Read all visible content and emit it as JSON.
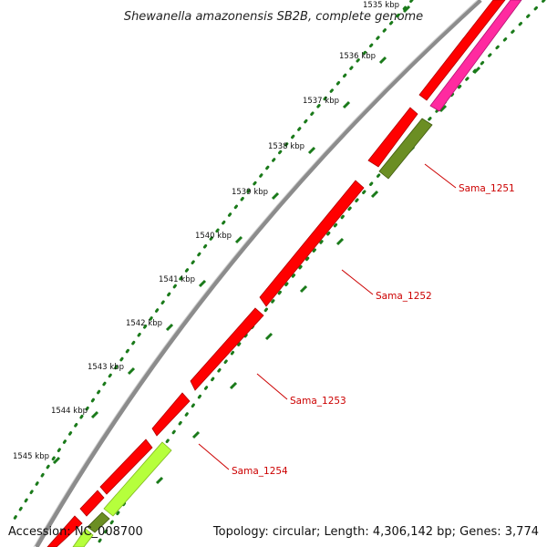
{
  "title": "Shewanella amazonensis SB2B, complete genome",
  "footer": {
    "accession": "Accession: NC_008700",
    "summary": "Topology: circular; Length: 4,306,142 bp; Genes: 3,774"
  },
  "ruler_ticks": [
    "1535 kbp",
    "1536 kbp",
    "1537 kbp",
    "1538 kbp",
    "1539 kbp",
    "1540 kbp",
    "1541 kbp",
    "1542 kbp",
    "1543 kbp",
    "1544 kbp",
    "1545 kbp"
  ],
  "gene_labels": [
    "Sama_1251",
    "Sama_1252",
    "Sama_1253",
    "Sama_1254"
  ],
  "colors": {
    "backbone": "#8c8c8c",
    "ruler_dots": "#1a7a1a",
    "forward_gene": "#ff0000",
    "rna_gene": "#ff2aa0",
    "olive_gene": "#6b8e23",
    "lime_gene": "#b6ff3c",
    "label": "#cc0000"
  }
}
